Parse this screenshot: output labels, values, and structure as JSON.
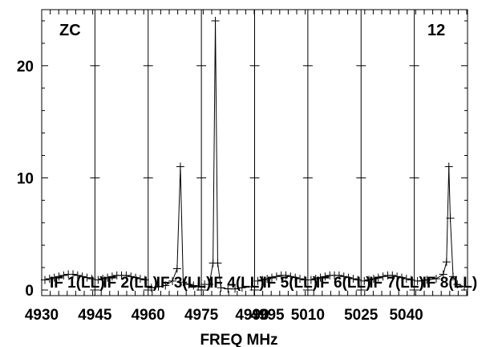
{
  "chart_data": {
    "type": "line",
    "corner_labels": {
      "left": "ZC",
      "right": "12"
    },
    "xlabel": "FREQ MHz",
    "ylabel": "",
    "y_ticks": [
      0,
      10,
      20
    ],
    "ylim": [
      -0.5,
      25.0
    ],
    "x_tick_labels": [
      "4930",
      "4945",
      "4960",
      "4975",
      "4990",
      "4995",
      "5010",
      "5025",
      "5040"
    ],
    "grid": "vertical lines at IF boundaries",
    "if_labels": [
      "IF 1(LL)",
      "IF 2(LL)",
      "IF 3(LL)",
      "IF 4(LL)",
      "IF 5(LL)",
      "IF 6(LL)",
      "IF 7(LL)",
      "IF 8(LL)"
    ],
    "panels": [
      {
        "name": "IF 1(LL)",
        "points": [
          [
            0,
            0.9
          ],
          [
            0.1,
            1.0
          ],
          [
            0.2,
            1.1
          ],
          [
            0.3,
            1.2
          ],
          [
            0.4,
            1.3
          ],
          [
            0.5,
            1.4
          ],
          [
            0.6,
            1.4
          ],
          [
            0.7,
            1.3
          ],
          [
            0.8,
            1.2
          ],
          [
            0.9,
            1.1
          ],
          [
            1.0,
            1.0
          ]
        ]
      },
      {
        "name": "IF 2(LL)",
        "points": [
          [
            0,
            0.9
          ],
          [
            0.1,
            1.0
          ],
          [
            0.2,
            1.1
          ],
          [
            0.3,
            1.2
          ],
          [
            0.4,
            1.3
          ],
          [
            0.5,
            1.3
          ],
          [
            0.6,
            1.3
          ],
          [
            0.7,
            1.2
          ],
          [
            0.8,
            1.1
          ],
          [
            0.9,
            1.0
          ],
          [
            1.0,
            0.9
          ]
        ]
      },
      {
        "name": "IF 3(LL)",
        "points": [
          [
            0,
            0.2
          ],
          [
            0.15,
            0.3
          ],
          [
            0.3,
            0.4
          ],
          [
            0.45,
            0.8
          ],
          [
            0.55,
            1.9
          ],
          [
            0.62,
            11.0
          ],
          [
            0.68,
            0.7
          ],
          [
            0.8,
            0.5
          ],
          [
            0.9,
            0.4
          ],
          [
            1.0,
            0.3
          ]
        ]
      },
      {
        "name": "IF 4(LL)",
        "points": [
          [
            0,
            0.5
          ],
          [
            0.1,
            0.5
          ],
          [
            0.18,
            2.4
          ],
          [
            0.23,
            24.0
          ],
          [
            0.28,
            2.4
          ],
          [
            0.35,
            0.2
          ],
          [
            0.5,
            0.1
          ],
          [
            0.65,
            0.1
          ],
          [
            0.8,
            0.2
          ],
          [
            1.0,
            0.3
          ]
        ]
      },
      {
        "name": "IF 5(LL)",
        "points": [
          [
            0,
            0.8
          ],
          [
            0.1,
            0.9
          ],
          [
            0.2,
            1.0
          ],
          [
            0.3,
            1.1
          ],
          [
            0.4,
            1.2
          ],
          [
            0.5,
            1.3
          ],
          [
            0.6,
            1.3
          ],
          [
            0.7,
            1.2
          ],
          [
            0.8,
            1.1
          ],
          [
            0.9,
            1.0
          ],
          [
            1.0,
            0.9
          ]
        ]
      },
      {
        "name": "IF 6(LL)",
        "points": [
          [
            0,
            0.9
          ],
          [
            0.1,
            1.0
          ],
          [
            0.2,
            1.1
          ],
          [
            0.3,
            1.2
          ],
          [
            0.4,
            1.3
          ],
          [
            0.5,
            1.3
          ],
          [
            0.6,
            1.3
          ],
          [
            0.7,
            1.2
          ],
          [
            0.8,
            1.1
          ],
          [
            0.9,
            1.0
          ],
          [
            1.0,
            0.9
          ]
        ]
      },
      {
        "name": "IF 7(LL)",
        "points": [
          [
            0,
            0.8
          ],
          [
            0.1,
            0.9
          ],
          [
            0.2,
            1.0
          ],
          [
            0.3,
            1.1
          ],
          [
            0.4,
            1.2
          ],
          [
            0.5,
            1.3
          ],
          [
            0.6,
            1.3
          ],
          [
            0.7,
            1.2
          ],
          [
            0.8,
            1.1
          ],
          [
            0.9,
            1.0
          ],
          [
            1.0,
            0.9
          ]
        ]
      },
      {
        "name": "IF 8(LL)",
        "points": [
          [
            0,
            0.8
          ],
          [
            0.2,
            0.9
          ],
          [
            0.4,
            1.0
          ],
          [
            0.55,
            1.4
          ],
          [
            0.62,
            2.5
          ],
          [
            0.67,
            11.0
          ],
          [
            0.7,
            6.4
          ],
          [
            0.76,
            1.2
          ],
          [
            0.85,
            0.5
          ],
          [
            1.0,
            0.3
          ]
        ]
      }
    ]
  }
}
